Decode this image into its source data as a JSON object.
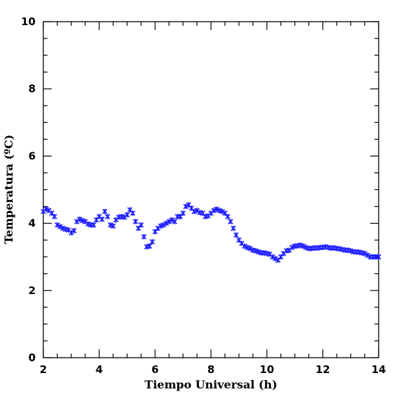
{
  "chart_data": {
    "type": "scatter",
    "xlabel": "Tiempo Universal (h)",
    "ylabel": "Temperatura (ºC)",
    "xlim": [
      2,
      14
    ],
    "ylim": [
      0,
      10
    ],
    "x_ticks": [
      2,
      4,
      6,
      8,
      10,
      12,
      14
    ],
    "y_ticks": [
      0,
      2,
      4,
      6,
      8,
      10
    ],
    "x_tick_labels": [
      "2",
      "4",
      "6",
      "8",
      "10",
      "12",
      "14"
    ],
    "y_tick_labels": [
      "0",
      "2",
      "4",
      "6",
      "8",
      "10"
    ],
    "marker": "asterisk",
    "color": "#1a1aff",
    "grid": false,
    "series": [
      {
        "x": [
          2.0,
          2.1,
          2.2,
          2.3,
          2.4,
          2.5,
          2.6,
          2.7,
          2.8,
          2.9,
          3.0,
          3.1,
          3.2,
          3.3,
          3.4,
          3.5,
          3.6,
          3.7,
          3.8,
          3.9,
          4.0,
          4.1,
          4.2,
          4.3,
          4.4,
          4.5,
          4.6,
          4.7,
          4.8,
          4.9,
          5.0,
          5.1,
          5.2,
          5.3,
          5.4,
          5.5,
          5.6,
          5.7,
          5.8,
          5.9,
          6.0,
          6.1,
          6.2,
          6.3,
          6.4,
          6.5,
          6.6,
          6.7,
          6.8,
          6.9,
          7.0,
          7.1,
          7.2,
          7.3,
          7.4,
          7.5,
          7.6,
          7.7,
          7.8,
          7.9,
          8.0,
          8.1,
          8.2,
          8.3,
          8.4,
          8.5,
          8.6,
          8.7,
          8.8,
          8.9,
          9.0,
          9.1,
          9.2,
          9.3,
          9.4,
          9.5,
          9.6,
          9.7,
          9.8,
          9.9,
          10.0,
          10.1,
          10.2,
          10.3,
          10.4,
          10.5,
          10.6,
          10.7,
          10.8,
          10.9,
          11.0,
          11.1,
          11.2,
          11.3,
          11.4,
          11.5,
          11.6,
          11.7,
          11.8,
          11.9,
          12.0,
          12.1,
          12.2,
          12.3,
          12.4,
          12.5,
          12.6,
          12.7,
          12.8,
          12.9,
          13.0,
          13.1,
          13.2,
          13.3,
          13.4,
          13.5,
          13.6,
          13.7,
          13.8,
          13.9,
          14.0
        ],
        "y": [
          4.35,
          4.42,
          4.38,
          4.3,
          4.2,
          3.95,
          3.9,
          3.85,
          3.82,
          3.8,
          3.72,
          3.78,
          4.05,
          4.12,
          4.08,
          4.05,
          3.98,
          3.95,
          3.95,
          4.1,
          4.2,
          4.12,
          4.35,
          4.2,
          3.95,
          3.92,
          4.1,
          4.18,
          4.2,
          4.18,
          4.25,
          4.4,
          4.3,
          4.05,
          3.85,
          3.95,
          3.6,
          3.3,
          3.32,
          3.45,
          3.75,
          3.85,
          3.92,
          3.95,
          4.0,
          4.05,
          4.1,
          4.05,
          4.2,
          4.2,
          4.3,
          4.5,
          4.55,
          4.45,
          4.35,
          4.38,
          4.32,
          4.3,
          4.2,
          4.22,
          4.3,
          4.38,
          4.42,
          4.38,
          4.35,
          4.3,
          4.2,
          4.05,
          3.85,
          3.65,
          3.5,
          3.4,
          3.32,
          3.28,
          3.25,
          3.2,
          3.18,
          3.15,
          3.12,
          3.12,
          3.1,
          3.08,
          3.0,
          2.95,
          2.9,
          3.0,
          3.1,
          3.18,
          3.2,
          3.28,
          3.32,
          3.33,
          3.35,
          3.32,
          3.28,
          3.25,
          3.25,
          3.27,
          3.26,
          3.28,
          3.28,
          3.3,
          3.28,
          3.26,
          3.27,
          3.25,
          3.24,
          3.22,
          3.2,
          3.2,
          3.18,
          3.15,
          3.15,
          3.14,
          3.12,
          3.1,
          3.05,
          3.0,
          3.0,
          3.0,
          3.0
        ]
      }
    ]
  }
}
